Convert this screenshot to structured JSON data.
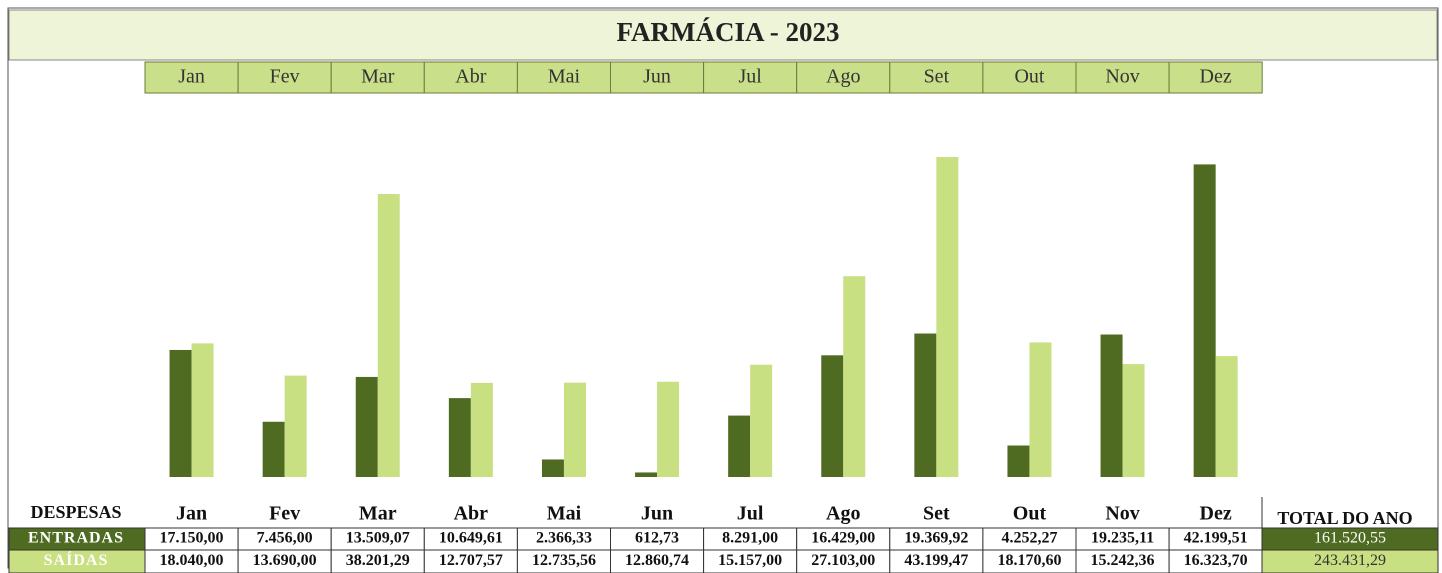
{
  "chart_data": {
    "type": "bar",
    "title": "FARMÁCIA - 2023",
    "categories": [
      "Jan",
      "Fev",
      "Mar",
      "Abr",
      "Mai",
      "Jun",
      "Jul",
      "Ago",
      "Set",
      "Out",
      "Nov",
      "Dez"
    ],
    "row_header": "DESPESAS",
    "series": [
      {
        "name": "ENTRADAS",
        "color": "#4f6b22",
        "values": [
          17150.0,
          7456.0,
          13509.07,
          10649.61,
          2366.33,
          612.73,
          8291.0,
          16429.0,
          19369.92,
          4252.27,
          19235.11,
          42199.51
        ],
        "value_labels": [
          "17.150,00",
          "7.456,00",
          "13.509,07",
          "10.649,61",
          "2.366,33",
          "612,73",
          "8.291,00",
          "16.429,00",
          "19.369,92",
          "4.252,27",
          "19.235,11",
          "42.199,51"
        ]
      },
      {
        "name": "SAÍDAS",
        "color": "#c8df82",
        "values": [
          18040.0,
          13690.0,
          38201.29,
          12707.57,
          12735.56,
          12860.74,
          15157.0,
          27103.0,
          43199.47,
          18170.6,
          15242.36,
          16323.7
        ],
        "value_labels": [
          "18.040,00",
          "13.690,00",
          "38.201,29",
          "12.707,57",
          "12.735,56",
          "12.860,74",
          "15.157,00",
          "27.103,00",
          "43.199,47",
          "18.170,60",
          "15.242,36",
          "16.323,70"
        ]
      }
    ],
    "totals": {
      "label": "TOTAL DO ANO",
      "values": [
        161520.55,
        243431.29
      ],
      "value_labels": [
        "161.520,55",
        "243.431,29"
      ]
    }
  }
}
